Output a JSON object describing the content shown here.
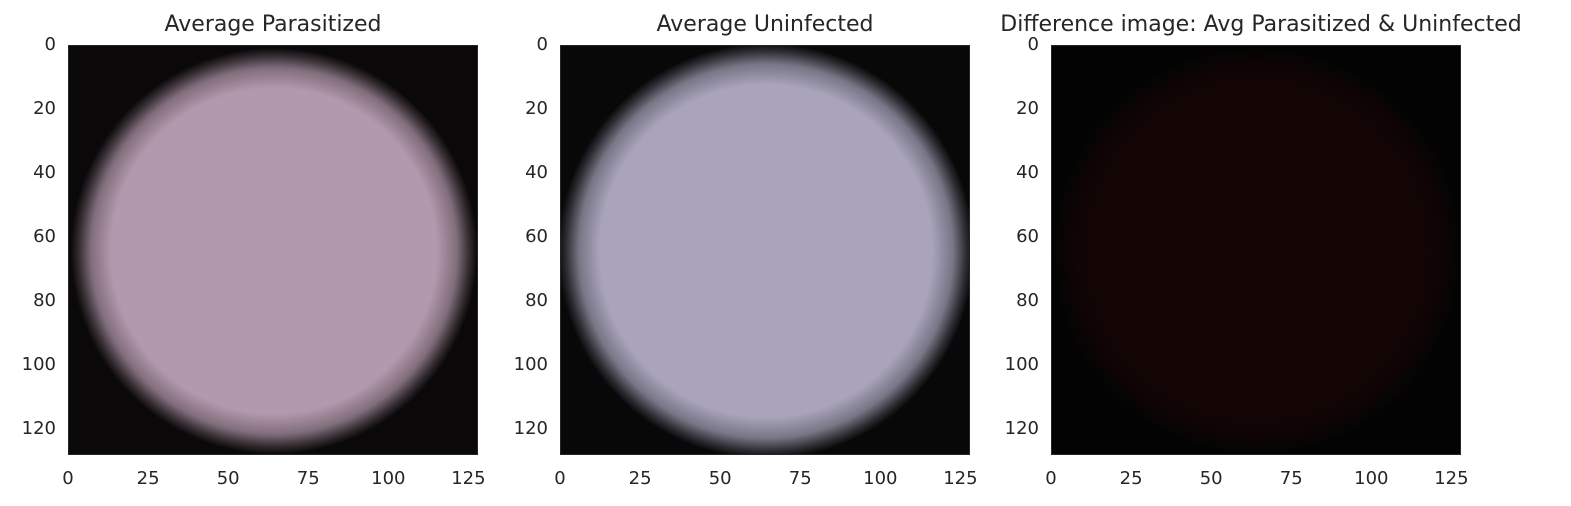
{
  "chart_data": [
    {
      "type": "heatmap",
      "title": "Average Parasitized",
      "image_size": [
        128,
        128
      ],
      "xticks": [
        0,
        25,
        50,
        75,
        100,
        125
      ],
      "yticks": [
        0,
        20,
        40,
        60,
        80,
        100,
        120
      ],
      "xlim": [
        0,
        128
      ],
      "ylim": [
        128,
        0
      ],
      "grid": false,
      "fill_color": "#b399ad",
      "edge_color": "#0a0808",
      "disc_radius": 0.455
    },
    {
      "type": "heatmap",
      "title": "Average Uninfected",
      "image_size": [
        128,
        128
      ],
      "xticks": [
        0,
        25,
        50,
        75,
        100,
        125
      ],
      "yticks": [
        0,
        20,
        40,
        60,
        80,
        100,
        120
      ],
      "xlim": [
        0,
        128
      ],
      "ylim": [
        128,
        0
      ],
      "grid": false,
      "fill_color": "#a9a4bb",
      "edge_color": "#080809",
      "disc_radius": 0.465
    },
    {
      "type": "heatmap",
      "title": "Difference image: Avg Parasitized & Uninfected",
      "image_size": [
        128,
        128
      ],
      "xticks": [
        0,
        25,
        50,
        75,
        100,
        125
      ],
      "yticks": [
        0,
        20,
        40,
        60,
        80,
        100,
        120
      ],
      "xlim": [
        0,
        128
      ],
      "ylim": [
        128,
        0
      ],
      "grid": false,
      "fill_color": "#140505",
      "edge_color": "#030303",
      "disc_radius": 0.46
    }
  ]
}
